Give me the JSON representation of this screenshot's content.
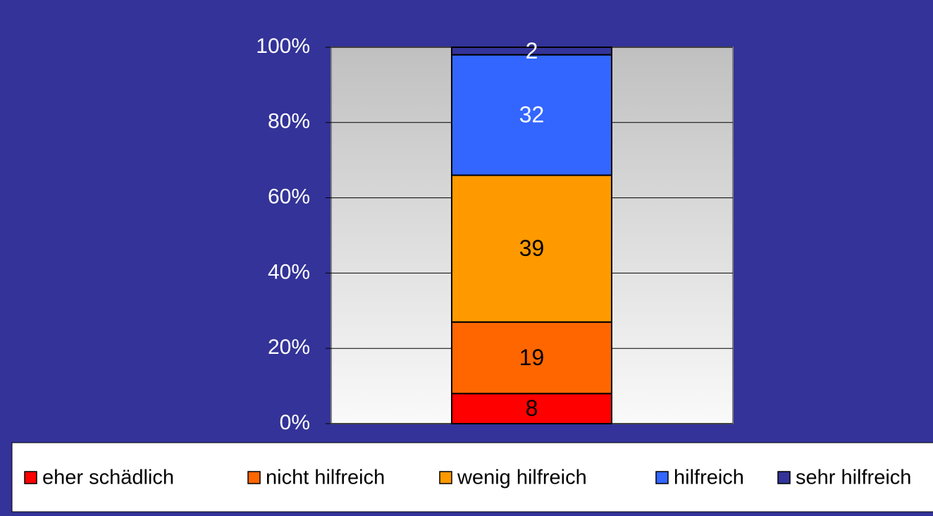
{
  "chart_data": {
    "type": "stacked_bar",
    "categories": [
      null
    ],
    "series": [
      {
        "name": "eher schädlich",
        "color": "#ff0000",
        "values": [
          8
        ]
      },
      {
        "name": "nicht hilfreich",
        "color": "#ff6600",
        "values": [
          19
        ]
      },
      {
        "name": "wenig hilfreich",
        "color": "#ff9900",
        "values": [
          39
        ]
      },
      {
        "name": "hilfreich",
        "color": "#3366ff",
        "values": [
          32
        ]
      },
      {
        "name": "sehr hilfreich",
        "color": "#333399",
        "values": [
          2
        ]
      }
    ],
    "ylim": [
      0,
      100
    ],
    "yticks": [
      {
        "value": 0,
        "label": "0%"
      },
      {
        "value": 20,
        "label": "20%"
      },
      {
        "value": 40,
        "label": "40%"
      },
      {
        "value": 60,
        "label": "60%"
      },
      {
        "value": 80,
        "label": "80%"
      },
      {
        "value": 100,
        "label": "100%"
      }
    ],
    "grid": true,
    "legend": "bottom"
  }
}
